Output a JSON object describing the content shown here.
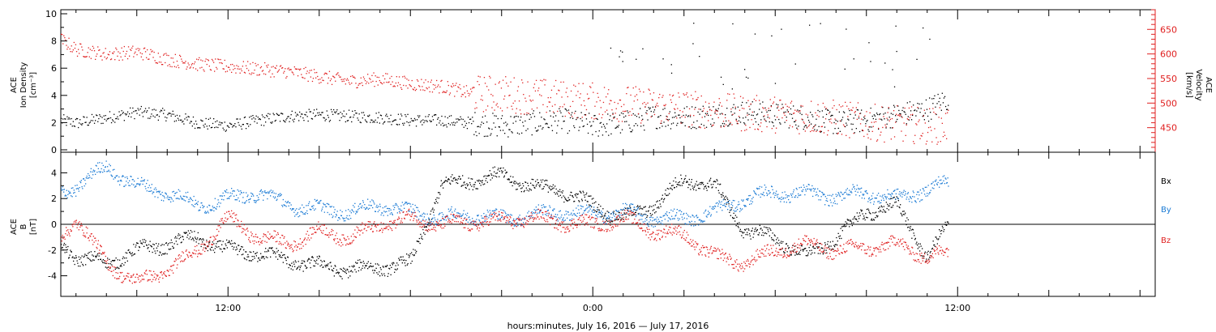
{
  "chart_data": [
    {
      "type": "scatter",
      "panel": "top",
      "ylabel_left": [
        "ACE",
        "Ion Density",
        "[cm⁻³]"
      ],
      "ylabel_right": [
        "ACE",
        "Velocity",
        "[km/s]"
      ],
      "ylim_left": [
        0,
        10
      ],
      "ylim_right": [
        400,
        690
      ],
      "yticks_left": [
        "0",
        "2",
        "4",
        "6",
        "8",
        "10"
      ],
      "yticks_right": [
        "450",
        "500",
        "550",
        "600",
        "650"
      ],
      "series": [
        {
          "axis": "left",
          "color": "#000000",
          "x": [
            6.5,
            7.0,
            8.0,
            9.0,
            10.0,
            11.0,
            12.0,
            13.0,
            14.0,
            15.0,
            16.0,
            17.0,
            18.0,
            19.0,
            20.0,
            21.0,
            22.0,
            23.0,
            24.0,
            25.0,
            26.0,
            27.0,
            28.0,
            29.0,
            30.0,
            31.0,
            32.0,
            33.0,
            34.0,
            35.0,
            35.7
          ],
          "y": [
            2.2,
            2.0,
            2.4,
            2.8,
            2.6,
            2.0,
            1.8,
            2.2,
            2.5,
            2.6,
            2.5,
            2.4,
            2.2,
            2.2,
            2.0,
            1.8,
            2.0,
            2.2,
            1.8,
            2.0,
            2.5,
            2.4,
            2.6,
            2.8,
            2.6,
            2.4,
            2.0,
            2.2,
            2.6,
            3.0,
            3.8
          ]
        },
        {
          "axis": "right",
          "color": "#e02020",
          "x": [
            6.5,
            7.0,
            8.0,
            9.0,
            10.0,
            11.0,
            12.0,
            13.0,
            14.0,
            15.0,
            16.0,
            17.0,
            18.0,
            19.0,
            20.0,
            21.0,
            22.0,
            23.0,
            24.0,
            25.0,
            26.0,
            27.0,
            28.0,
            29.0,
            30.0,
            31.0,
            32.0,
            33.0,
            34.0,
            35.0,
            35.7
          ],
          "y": [
            630,
            610,
            600,
            605,
            590,
            580,
            575,
            570,
            565,
            555,
            545,
            550,
            540,
            535,
            520,
            520,
            515,
            510,
            505,
            500,
            495,
            490,
            485,
            480,
            478,
            475,
            470,
            462,
            458,
            455,
            455
          ]
        }
      ]
    },
    {
      "type": "scatter",
      "panel": "bottom",
      "ylabel": [
        "ACE",
        "B",
        "[nT]"
      ],
      "ylim": [
        -5.6,
        5.6
      ],
      "yticks": [
        "-4",
        "-2",
        "0",
        "2",
        "4"
      ],
      "zero_line": true,
      "series": [
        {
          "name": "Bx",
          "color": "#000000",
          "x": [
            6.5,
            7.0,
            8.0,
            9.0,
            10.0,
            11.0,
            12.0,
            13.0,
            14.0,
            15.0,
            16.0,
            17.0,
            18.0,
            19.0,
            20.0,
            21.0,
            22.0,
            23.0,
            24.0,
            25.0,
            26.0,
            27.0,
            28.0,
            29.0,
            30.0,
            31.0,
            32.0,
            33.0,
            34.0,
            35.0,
            35.7
          ],
          "y": [
            -1.5,
            -2.5,
            -3.0,
            -2.0,
            -1.5,
            -1.0,
            -2.0,
            -2.2,
            -2.8,
            -3.2,
            -3.5,
            -3.3,
            -3.0,
            3.0,
            3.5,
            3.8,
            3.0,
            2.6,
            1.5,
            0.5,
            1.5,
            3.5,
            3.0,
            -0.5,
            -1.0,
            -2.5,
            -1.0,
            1.0,
            1.5,
            -2.5,
            0.0
          ]
        },
        {
          "name": "By",
          "color": "#1a7ad4",
          "x": [
            6.5,
            7.0,
            8.0,
            9.0,
            10.0,
            11.0,
            12.0,
            13.0,
            14.0,
            15.0,
            16.0,
            17.0,
            18.0,
            19.0,
            20.0,
            21.0,
            22.0,
            23.0,
            24.0,
            25.0,
            26.0,
            27.0,
            28.0,
            29.0,
            30.0,
            31.0,
            32.0,
            33.0,
            34.0,
            35.0,
            35.7
          ],
          "y": [
            2.5,
            3.0,
            4.5,
            3.0,
            2.5,
            1.5,
            2.0,
            2.5,
            1.5,
            1.2,
            1.0,
            1.5,
            1.0,
            0.5,
            0.8,
            0.5,
            0.8,
            1.0,
            0.8,
            1.0,
            0.5,
            0.5,
            1.0,
            2.0,
            2.5,
            2.4,
            2.2,
            2.5,
            2.0,
            2.8,
            3.2
          ]
        },
        {
          "name": "Bz",
          "color": "#e02020",
          "x": [
            6.5,
            7.0,
            8.0,
            9.0,
            10.0,
            11.0,
            12.0,
            13.0,
            14.0,
            15.0,
            16.0,
            17.0,
            18.0,
            19.0,
            20.0,
            21.0,
            22.0,
            23.0,
            24.0,
            25.0,
            26.0,
            27.0,
            28.0,
            29.0,
            30.0,
            31.0,
            32.0,
            33.0,
            34.0,
            35.0,
            35.7
          ],
          "y": [
            -1.0,
            0.5,
            -3.0,
            -4.5,
            -3.5,
            -2.0,
            0.5,
            -1.0,
            -1.5,
            -0.5,
            -1.0,
            0.0,
            0.5,
            0.0,
            0.2,
            0.3,
            0.5,
            0.2,
            0.0,
            0.5,
            -0.5,
            -0.8,
            -2.5,
            -3.0,
            -2.0,
            -1.5,
            -2.0,
            -1.8,
            -1.5,
            -2.5,
            -2.2
          ]
        }
      ],
      "legend": [
        "Bx",
        "By",
        "Bz"
      ]
    }
  ],
  "xaxis": {
    "xlim": [
      6.5,
      42.5
    ],
    "major_ticks": [
      12,
      24,
      36
    ],
    "tick_labels": [
      "12:00",
      "0:00",
      "12:00"
    ],
    "xlabel": "hours:minutes, July 16, 2016 — July 17, 2016"
  },
  "legend_labels": {
    "bx": "Bx",
    "by": "By",
    "bz": "Bz"
  },
  "colors": {
    "black": "#000000",
    "red": "#e02020",
    "blue": "#1a7ad4"
  }
}
